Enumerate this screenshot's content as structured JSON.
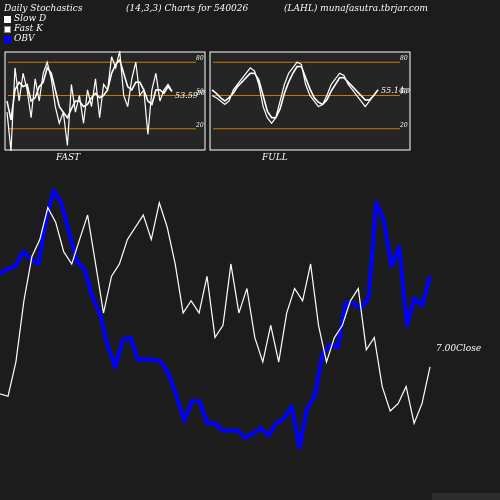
{
  "header": {
    "title": "Daily Stochastics",
    "params": "(14,3,3) Charts for 540026",
    "site": "(LAHL) munafasutra.tbrjar.com"
  },
  "legend": [
    {
      "label": "Slow  D",
      "color": "#ffffff"
    },
    {
      "label": "Fast  K",
      "color": "#ffffff"
    },
    {
      "label": "OBV",
      "color": "#0000ff"
    }
  ],
  "panels": {
    "fast_label": "FAST",
    "full_label": "FULL",
    "fast_value": "53.59",
    "fast_value_tail": "50",
    "full_value": "55.14",
    "full_value_tail": "50",
    "levels": [
      "80",
      "50",
      "20"
    ]
  },
  "colors": {
    "background": "#1c1c1c",
    "panel": "#252525",
    "level_line": "#c87800",
    "obv": "#0000ff",
    "price": "#ffffff"
  },
  "chart_data": [
    {
      "type": "line",
      "name": "FAST",
      "ylim": [
        0,
        100
      ],
      "reference_lines": [
        80,
        50,
        20
      ],
      "series": [
        {
          "name": "Fast  K",
          "values": [
            35,
            0,
            75,
            45,
            70,
            55,
            30,
            65,
            45,
            70,
            80,
            65,
            40,
            25,
            35,
            5,
            60,
            35,
            50,
            25,
            55,
            40,
            65,
            30,
            60,
            55,
            85,
            75,
            90,
            50,
            40,
            65,
            80,
            50,
            55,
            15,
            55,
            70,
            45,
            55,
            60,
            54
          ]
        },
        {
          "name": "Slow  D",
          "values": [
            45,
            28,
            55,
            62,
            58,
            60,
            45,
            48,
            58,
            62,
            75,
            70,
            55,
            40,
            35,
            30,
            38,
            45,
            45,
            40,
            42,
            48,
            52,
            48,
            50,
            55,
            70,
            78,
            82,
            70,
            58,
            55,
            62,
            62,
            55,
            45,
            42,
            55,
            55,
            52,
            58,
            53.59
          ]
        }
      ]
    },
    {
      "type": "line",
      "name": "FULL",
      "ylim": [
        0,
        100
      ],
      "reference_lines": [
        80,
        50,
        20
      ],
      "series": [
        {
          "name": "Fast  K",
          "values": [
            50,
            48,
            45,
            42,
            45,
            55,
            60,
            65,
            70,
            75,
            72,
            60,
            40,
            30,
            25,
            30,
            45,
            60,
            70,
            75,
            80,
            78,
            60,
            50,
            45,
            40,
            42,
            50,
            60,
            65,
            70,
            68,
            60,
            55,
            50,
            45,
            40,
            45,
            50,
            55
          ]
        },
        {
          "name": "Slow  D",
          "values": [
            55,
            52,
            48,
            45,
            48,
            52,
            58,
            62,
            66,
            70,
            70,
            64,
            50,
            36,
            30,
            30,
            38,
            52,
            62,
            70,
            76,
            76,
            66,
            56,
            48,
            44,
            42,
            46,
            54,
            60,
            66,
            66,
            62,
            58,
            54,
            50,
            46,
            46,
            50,
            55.14
          ]
        }
      ]
    },
    {
      "type": "line",
      "name": "OBV-Price",
      "series": [
        {
          "name": "OBV",
          "values": [
            76,
            78,
            79,
            85,
            82,
            80,
            98,
            110,
            105,
            93,
            81,
            78,
            67,
            60,
            47,
            38,
            49,
            50,
            41,
            41,
            41,
            40,
            35,
            26,
            16,
            24,
            24,
            15,
            15,
            12,
            12,
            12,
            9,
            11,
            13,
            10,
            15,
            17,
            22,
            5,
            21,
            26,
            43,
            47,
            46,
            64,
            64,
            62,
            66,
            105,
            98,
            79,
            87,
            55,
            66,
            63,
            75
          ]
        },
        {
          "name": "Close",
          "values": [
            7,
            6,
            20,
            45,
            63,
            70,
            83,
            77,
            65,
            60,
            70,
            80,
            60,
            40,
            55,
            60,
            70,
            75,
            80,
            70,
            85,
            75,
            60,
            40,
            45,
            40,
            55,
            30,
            35,
            60,
            40,
            50,
            30,
            20,
            35,
            20,
            40,
            50,
            45,
            60,
            35,
            20,
            30,
            35,
            45,
            50,
            25,
            30,
            10,
            0,
            3,
            10,
            -5,
            3,
            18
          ]
        },
        {
          "name": "Close-label",
          "label": "7.00Close"
        }
      ]
    }
  ]
}
